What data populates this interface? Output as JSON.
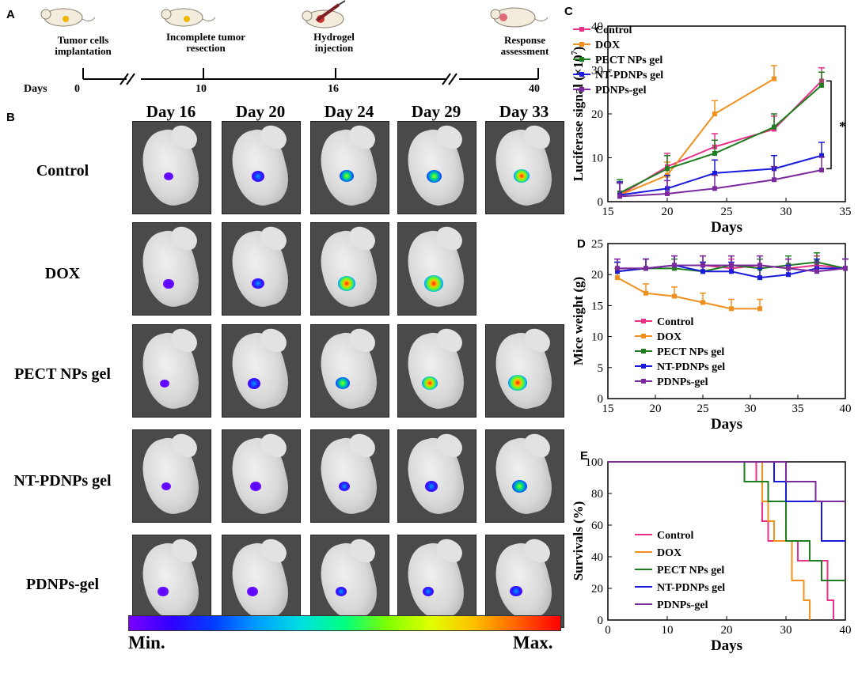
{
  "panels": {
    "a": "A",
    "b": "B",
    "c": "C",
    "d": "D",
    "e": "E"
  },
  "timeline": {
    "days_label": "Days",
    "events": [
      {
        "label": "Tumor  cells implantation",
        "day": "0"
      },
      {
        "label": "Incomplete tumor resection",
        "day": "10"
      },
      {
        "label": "Hydrogel injection",
        "day": "16"
      },
      {
        "label": "Response assessment",
        "day": "40"
      }
    ]
  },
  "imaging": {
    "days": [
      "Day 16",
      "Day 20",
      "Day 24",
      "Day 29",
      "Day 33"
    ],
    "groups": [
      "Control",
      "DOX",
      "PECT NPs gel",
      "NT-PDNPs gel",
      "PDNPs-gel"
    ],
    "scale_min": "Min.",
    "scale_max": "Max."
  },
  "colors": {
    "Control": "#e8308a",
    "DOX": "#f0901e",
    "PECT NPs gel": "#1e7d1e",
    "NT-PDNPs gel": "#1a1adb",
    "PDNPs-gel": "#7b2a9e"
  },
  "chart_data": [
    {
      "type": "line",
      "title": "",
      "xlabel": "Days",
      "ylabel": "Luciferase signal (×10",
      "ylabel_sup": "7",
      "ylabel_end": ")",
      "xlim": [
        15,
        35
      ],
      "ylim": [
        0,
        40
      ],
      "xticks": [
        15,
        20,
        25,
        30,
        35
      ],
      "yticks": [
        0,
        10,
        20,
        30,
        40
      ],
      "significance": "*",
      "series": [
        {
          "name": "Control",
          "x": [
            16,
            20,
            24,
            29,
            33
          ],
          "y": [
            1.5,
            8,
            12.5,
            16.5,
            27.5
          ]
        },
        {
          "name": "DOX",
          "x": [
            16,
            20,
            24,
            29
          ],
          "y": [
            1.5,
            6,
            20,
            28
          ]
        },
        {
          "name": "PECT NPs gel",
          "x": [
            16,
            20,
            24,
            29,
            33
          ],
          "y": [
            2,
            7.5,
            11,
            17,
            26.5
          ]
        },
        {
          "name": "NT-PDNPs gel",
          "x": [
            16,
            20,
            24,
            29,
            33
          ],
          "y": [
            1.5,
            3,
            6.5,
            7.5,
            10.5
          ]
        },
        {
          "name": "PDNPs-gel",
          "x": [
            16,
            20,
            24,
            29,
            33
          ],
          "y": [
            1.2,
            1.8,
            3,
            5,
            7.2
          ]
        }
      ]
    },
    {
      "type": "line",
      "title": "",
      "xlabel": "Days",
      "ylabel": "Mice weight (g)",
      "xlim": [
        15,
        40
      ],
      "ylim": [
        0,
        25
      ],
      "xticks": [
        15,
        20,
        25,
        30,
        35,
        40
      ],
      "yticks": [
        0,
        5,
        10,
        15,
        20,
        25
      ],
      "series": [
        {
          "name": "Control",
          "x": [
            16,
            19,
            22,
            25,
            28,
            31,
            34,
            37,
            40
          ],
          "y": [
            21,
            21,
            21.5,
            21.5,
            21,
            21.5,
            21,
            21.5,
            21
          ]
        },
        {
          "name": "DOX",
          "x": [
            16,
            19,
            22,
            25,
            28,
            31
          ],
          "y": [
            19.5,
            17,
            16.5,
            15.5,
            14.5,
            14.5
          ]
        },
        {
          "name": "PECT NPs gel",
          "x": [
            16,
            19,
            22,
            25,
            28,
            31,
            34,
            37,
            40
          ],
          "y": [
            20.5,
            21,
            21,
            20.5,
            21.5,
            21,
            21.5,
            22,
            21
          ]
        },
        {
          "name": "NT-PDNPs gel",
          "x": [
            16,
            19,
            22,
            25,
            28,
            31,
            34,
            37,
            40
          ],
          "y": [
            20.5,
            21,
            21.5,
            20.5,
            20.5,
            19.5,
            20,
            21,
            21
          ]
        },
        {
          "name": "PDNPs-gel",
          "x": [
            16,
            19,
            22,
            25,
            28,
            31,
            34,
            37,
            40
          ],
          "y": [
            21,
            21,
            21.5,
            21.5,
            21.5,
            21.5,
            21,
            20.5,
            21
          ]
        }
      ]
    },
    {
      "type": "line",
      "title": "",
      "xlabel": "Days",
      "ylabel": "Survivals (%)",
      "xlim": [
        0,
        40
      ],
      "ylim": [
        0,
        100
      ],
      "xticks": [
        0,
        10,
        20,
        30,
        40
      ],
      "yticks": [
        0,
        20,
        40,
        60,
        80,
        100
      ],
      "series": [
        {
          "name": "Control",
          "x": [
            0,
            25,
            25,
            26,
            26,
            27,
            27,
            32,
            32,
            37,
            37,
            38,
            38
          ],
          "y": [
            100,
            100,
            87.5,
            87.5,
            62.5,
            62.5,
            50,
            50,
            37.5,
            37.5,
            12.5,
            12.5,
            0
          ]
        },
        {
          "name": "DOX",
          "x": [
            0,
            26,
            26,
            27,
            27,
            28,
            28,
            31,
            31,
            33,
            33,
            34,
            34
          ],
          "y": [
            100,
            100,
            75,
            75,
            62.5,
            62.5,
            50,
            50,
            25,
            25,
            12.5,
            12.5,
            0
          ]
        },
        {
          "name": "PECT NPs gel",
          "x": [
            0,
            23,
            23,
            27,
            27,
            30,
            30,
            34,
            34,
            36,
            36,
            40
          ],
          "y": [
            100,
            100,
            87.5,
            87.5,
            75,
            75,
            50,
            50,
            37.5,
            37.5,
            25,
            25
          ]
        },
        {
          "name": "NT-PDNPs gel",
          "x": [
            0,
            28,
            28,
            30,
            30,
            36,
            36,
            40
          ],
          "y": [
            100,
            100,
            87.5,
            87.5,
            75,
            75,
            50,
            50
          ]
        },
        {
          "name": "PDNPs-gel",
          "x": [
            0,
            30,
            30,
            35,
            35,
            40
          ],
          "y": [
            100,
            100,
            87.5,
            87.5,
            75,
            75
          ]
        }
      ]
    }
  ]
}
